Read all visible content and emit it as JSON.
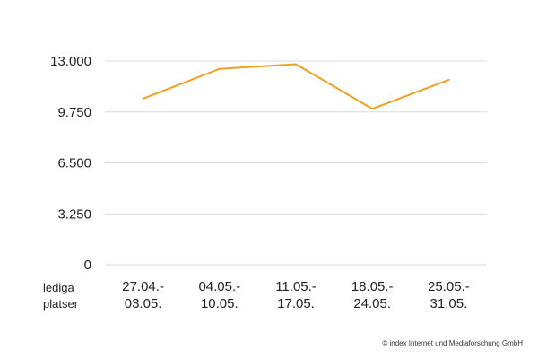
{
  "chart_data": {
    "type": "line",
    "title": "",
    "xlabel": "",
    "ylabel": [
      "lediga",
      "platser"
    ],
    "categories": [
      [
        "27.04.-",
        "03.05."
      ],
      [
        "04.05.-",
        "10.05."
      ],
      [
        "11.05.-",
        "17.05."
      ],
      [
        "18.05.-",
        "24.05."
      ],
      [
        "25.05.-",
        "31.05."
      ]
    ],
    "series": [
      {
        "values": [
          10600,
          12500,
          12800,
          9950,
          11800
        ],
        "color": "#f0a11c"
      }
    ],
    "ylim": [
      0,
      13000
    ],
    "yticks": [
      0,
      3250,
      6500,
      9750,
      13000
    ],
    "ytick_labels": [
      "0",
      "3.250",
      "6.500",
      "9.750",
      "13.000"
    ],
    "grid": true,
    "grid_color": "#d9d9d9"
  },
  "footer": {
    "copyright": "© index Internet und Mediaforschung GmbH"
  }
}
